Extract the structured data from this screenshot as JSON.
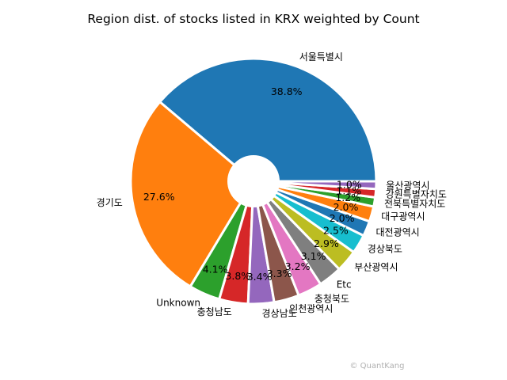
{
  "chart_data": {
    "type": "pie",
    "title": "Region dist. of stocks listed in KRX weighted by Count",
    "watermark": "© QuantKang",
    "slices": [
      {
        "label": "서울특별시",
        "value": 38.8,
        "pct_label": "38.8%",
        "color": "#1f77b4"
      },
      {
        "label": "경기도",
        "value": 27.6,
        "pct_label": "27.6%",
        "color": "#ff7f0e"
      },
      {
        "label": "Unknown",
        "value": 4.1,
        "pct_label": "4.1%",
        "color": "#2ca02c"
      },
      {
        "label": "충청남도",
        "value": 3.8,
        "pct_label": "3.8%",
        "color": "#d62728"
      },
      {
        "label": "경상남도",
        "value": 3.4,
        "pct_label": "3.4%",
        "color": "#9467bd"
      },
      {
        "label": "인천광역시",
        "value": 3.3,
        "pct_label": "3.3%",
        "color": "#8c564b"
      },
      {
        "label": "충청북도",
        "value": 3.2,
        "pct_label": "3.2%",
        "color": "#e377c2"
      },
      {
        "label": "Etc",
        "value": 3.1,
        "pct_label": "3.1%",
        "color": "#7f7f7f"
      },
      {
        "label": "부산광역시",
        "value": 2.9,
        "pct_label": "2.9%",
        "color": "#bcbd22"
      },
      {
        "label": "경상북도",
        "value": 2.5,
        "pct_label": "2.5%",
        "color": "#17becf"
      },
      {
        "label": "대전광역시",
        "value": 2.0,
        "pct_label": "2.0%",
        "color": "#1f77b4"
      },
      {
        "label": "대구광역시",
        "value": 2.0,
        "pct_label": "2.0%",
        "color": "#ff7f0e"
      },
      {
        "label": "전북특별자치도",
        "value": 1.2,
        "pct_label": "1.2%",
        "color": "#2ca02c"
      },
      {
        "label": "강원특별자치도",
        "value": 1.1,
        "pct_label": "1.1%",
        "color": "#d62728"
      },
      {
        "label": "울산광역시",
        "value": 1.0,
        "pct_label": "1.0%",
        "color": "#9467bd"
      }
    ]
  }
}
